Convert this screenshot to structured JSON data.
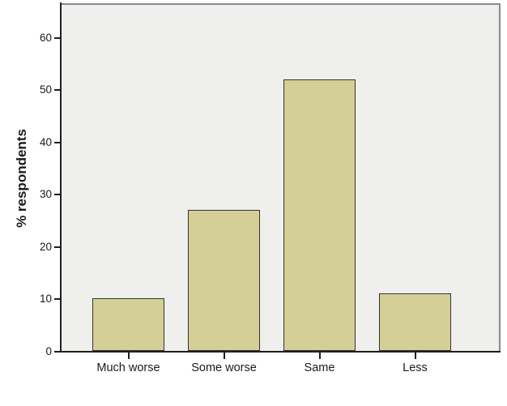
{
  "chart_data": {
    "type": "bar",
    "categories": [
      "Much worse",
      "Some worse",
      "Same",
      "Less"
    ],
    "values": [
      10,
      27,
      52,
      11
    ],
    "title": "",
    "xlabel": "",
    "ylabel": "% respondents",
    "ylim": [
      0,
      66.5
    ],
    "yticks": [
      0,
      10,
      20,
      30,
      40,
      50,
      60
    ],
    "grid": false,
    "legend": "none",
    "colors": {
      "bar_fill": "#d3cf97",
      "bar_border": "#35352b",
      "plot_background": "#efefee",
      "frame": "#8a8a8a",
      "axis": "#1f1f1f",
      "text": "#1a1a1a",
      "page_background": "#ffffff"
    }
  }
}
